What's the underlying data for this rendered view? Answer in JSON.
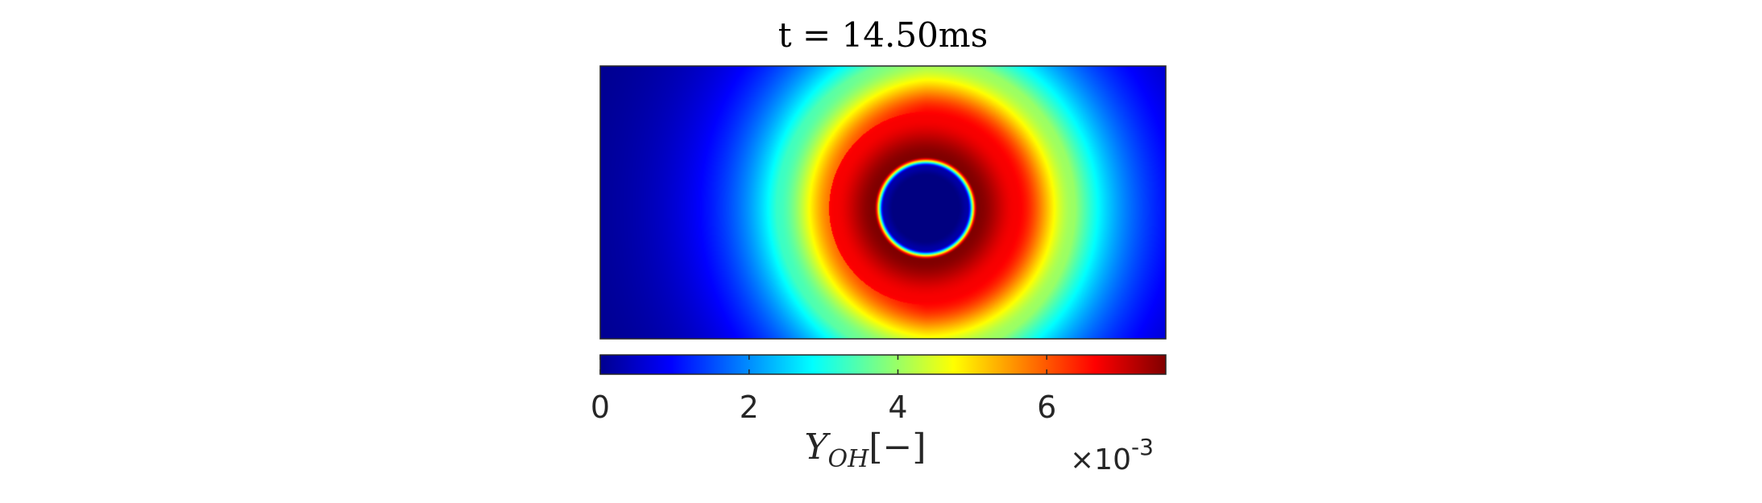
{
  "chart_data": {
    "type": "heatmap",
    "title": "t = 14.50ms",
    "colormap": "jet",
    "grid": false,
    "field": {
      "description_hidden": false,
      "ring_center": {
        "x": 0.575,
        "y": 0.52
      },
      "core_value": 0.0,
      "peak_value": 7.6,
      "ambient_value": 0.0
    },
    "colorbar": {
      "orientation": "horizontal",
      "location": "south",
      "range": [
        0,
        7.6
      ],
      "ticks": [
        0,
        2,
        4,
        6
      ],
      "tick_labels": [
        "0",
        "2",
        "4",
        "6"
      ],
      "label_main": "Y",
      "label_sub": "OH",
      "label_unit": "[−]",
      "multiplier_base": "×10",
      "multiplier_exp": "-3"
    }
  },
  "colors": {
    "axes_border": "#262626",
    "text": "#262626"
  }
}
